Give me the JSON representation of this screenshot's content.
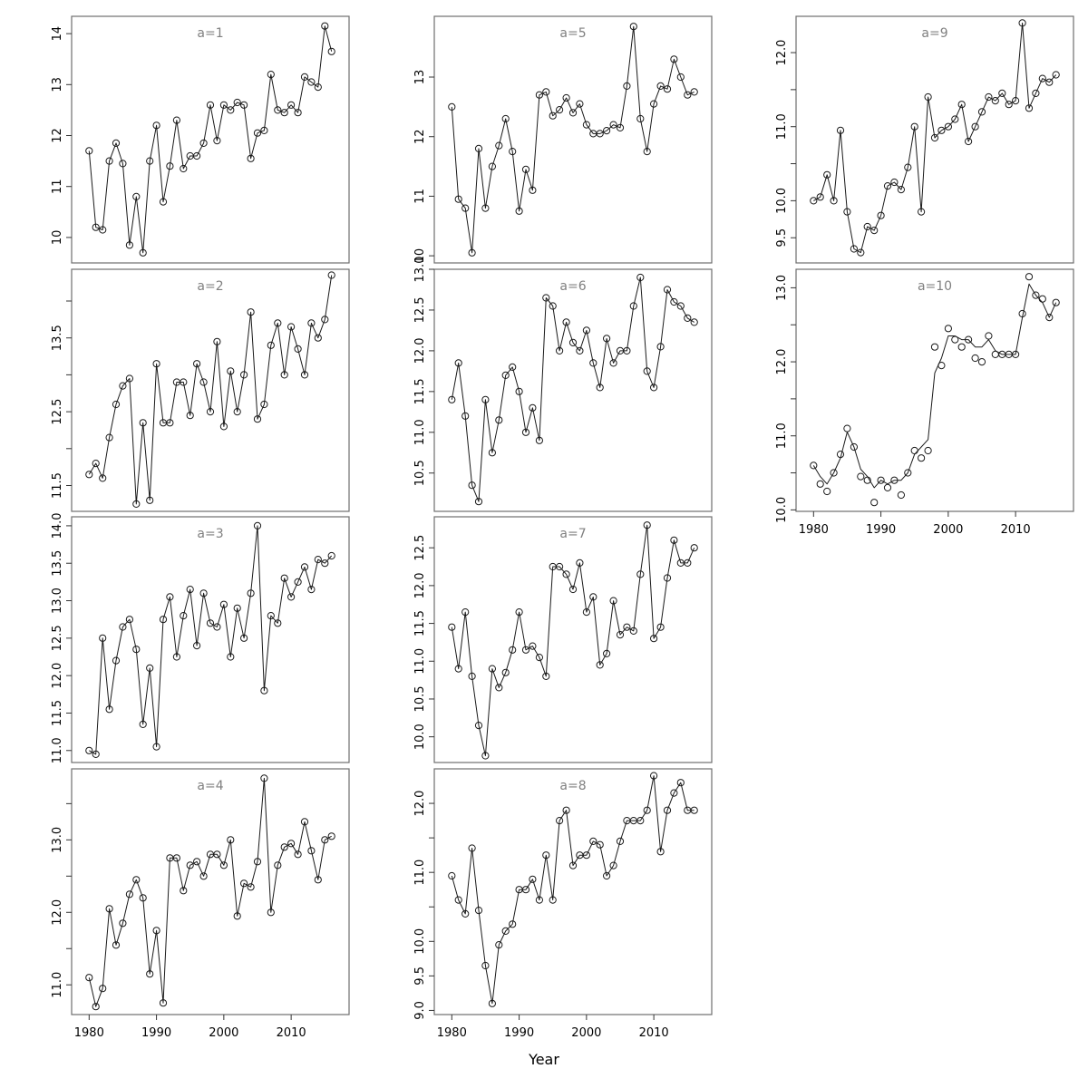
{
  "figure": {
    "xlabel": "Year",
    "x_ticks": [
      1980,
      1990,
      2000,
      2010
    ],
    "x_range": [
      1977.4,
      2018.6
    ],
    "years": [
      1980,
      1981,
      1982,
      1983,
      1984,
      1985,
      1986,
      1987,
      1988,
      1989,
      1990,
      1991,
      1992,
      1993,
      1994,
      1995,
      1996,
      1997,
      1998,
      1999,
      2000,
      2001,
      2002,
      2003,
      2004,
      2005,
      2006,
      2007,
      2008,
      2009,
      2010,
      2011,
      2012,
      2013,
      2014,
      2015,
      2016
    ],
    "line_color": "#1a1a1a",
    "marker_color": "#1a1a1a",
    "border_color": "#6e6e6e",
    "title_color": "#808080",
    "tick_label_color": "#000000"
  },
  "chart_data": [
    {
      "type": "line",
      "title": "a=1",
      "col": 0,
      "row": 0,
      "show_x_labels": false,
      "ylim": [
        9.5,
        14.34
      ],
      "yticks": [
        [
          10,
          "10"
        ],
        [
          11,
          "11"
        ],
        [
          12,
          "12"
        ],
        [
          13,
          "13"
        ],
        [
          14,
          "14"
        ]
      ],
      "values": [
        11.7,
        10.2,
        10.15,
        11.5,
        11.85,
        11.45,
        9.85,
        10.8,
        9.7,
        11.5,
        12.2,
        10.7,
        11.4,
        12.3,
        11.35,
        11.6,
        11.6,
        11.85,
        12.6,
        11.9,
        12.6,
        12.5,
        12.65,
        12.6,
        11.55,
        12.05,
        12.1,
        13.2,
        12.5,
        12.45,
        12.6,
        12.45,
        13.15,
        13.05,
        12.95,
        14.15,
        13.65
      ]
    },
    {
      "type": "line",
      "title": "a=2",
      "col": 0,
      "row": 1,
      "show_x_labels": false,
      "ylim": [
        11.15,
        14.43
      ],
      "yticks": [
        [
          11.5,
          "11.5"
        ],
        [
          12,
          ""
        ],
        [
          12.5,
          "12.5"
        ],
        [
          13,
          ""
        ],
        [
          13.5,
          "13.5"
        ],
        [
          14,
          ""
        ]
      ],
      "values": [
        11.65,
        11.8,
        11.6,
        12.15,
        12.6,
        12.85,
        12.95,
        11.25,
        12.35,
        11.3,
        13.15,
        12.35,
        12.35,
        12.9,
        12.9,
        12.45,
        13.15,
        12.9,
        12.5,
        13.45,
        12.3,
        13.05,
        12.5,
        13.0,
        13.85,
        12.4,
        12.6,
        13.4,
        13.7,
        13.0,
        13.65,
        13.35,
        13.0,
        13.7,
        13.5,
        13.75,
        14.35
      ]
    },
    {
      "type": "line",
      "title": "a=3",
      "col": 0,
      "row": 2,
      "show_x_labels": false,
      "ylim": [
        10.84,
        14.12
      ],
      "yticks": [
        [
          11,
          "11.0"
        ],
        [
          11.5,
          "11.5"
        ],
        [
          12,
          "12.0"
        ],
        [
          12.5,
          "12.5"
        ],
        [
          13,
          "13.0"
        ],
        [
          13.5,
          "13.5"
        ],
        [
          14,
          "14.0"
        ]
      ],
      "values": [
        11.0,
        10.95,
        12.5,
        11.55,
        12.2,
        12.65,
        12.75,
        12.35,
        11.35,
        12.1,
        11.05,
        12.75,
        13.05,
        12.25,
        12.8,
        13.15,
        12.4,
        13.1,
        12.7,
        12.65,
        12.95,
        12.25,
        12.9,
        12.5,
        13.1,
        14.0,
        11.8,
        12.8,
        12.7,
        13.3,
        13.05,
        13.25,
        13.45,
        13.15,
        13.55,
        13.5,
        13.6
      ]
    },
    {
      "type": "line",
      "title": "a=4",
      "col": 0,
      "row": 3,
      "show_x_labels": true,
      "ylim": [
        10.59,
        13.98
      ],
      "yticks": [
        [
          11,
          "11.0"
        ],
        [
          11.5,
          ""
        ],
        [
          12,
          "12.0"
        ],
        [
          12.5,
          ""
        ],
        [
          13,
          "13.0"
        ],
        [
          13.5,
          ""
        ]
      ],
      "values": [
        11.1,
        10.7,
        10.95,
        12.05,
        11.55,
        11.85,
        12.25,
        12.45,
        12.2,
        11.15,
        11.75,
        10.75,
        12.75,
        12.75,
        12.3,
        12.65,
        12.7,
        12.5,
        12.8,
        12.8,
        12.65,
        13.0,
        11.95,
        12.4,
        12.35,
        12.7,
        13.85,
        12.0,
        12.65,
        12.9,
        12.95,
        12.8,
        13.25,
        12.85,
        12.45,
        13.0,
        13.05
      ]
    },
    {
      "type": "line",
      "title": "a=5",
      "col": 1,
      "row": 0,
      "show_x_labels": false,
      "ylim": [
        9.88,
        14.02
      ],
      "yticks": [
        [
          10,
          "10"
        ],
        [
          11,
          "11"
        ],
        [
          12,
          "12"
        ],
        [
          13,
          "13"
        ]
      ],
      "values": [
        12.5,
        10.95,
        10.8,
        10.05,
        11.8,
        10.8,
        11.5,
        11.85,
        12.3,
        11.75,
        10.75,
        11.45,
        11.1,
        12.7,
        12.75,
        12.35,
        12.45,
        12.65,
        12.4,
        12.55,
        12.2,
        12.05,
        12.05,
        12.1,
        12.2,
        12.15,
        12.85,
        13.85,
        12.3,
        11.75,
        12.55,
        12.85,
        12.8,
        13.3,
        13.0,
        12.7,
        12.75
      ]
    },
    {
      "type": "line",
      "title": "a=6",
      "col": 1,
      "row": 1,
      "show_x_labels": false,
      "ylim": [
        10.03,
        13.0
      ],
      "yticks": [
        [
          10.5,
          "10.5"
        ],
        [
          11,
          "11.0"
        ],
        [
          11.5,
          "11.5"
        ],
        [
          12,
          "12.0"
        ],
        [
          12.5,
          "12.5"
        ],
        [
          13,
          "13.0"
        ]
      ],
      "values": [
        11.4,
        11.85,
        11.2,
        10.35,
        10.15,
        11.4,
        10.75,
        11.15,
        11.7,
        11.8,
        11.5,
        11.0,
        11.3,
        10.9,
        12.65,
        12.55,
        12.0,
        12.35,
        12.1,
        12.0,
        12.25,
        11.85,
        11.55,
        12.15,
        11.85,
        12.0,
        12.0,
        12.55,
        12.9,
        11.75,
        11.55,
        12.05,
        12.75,
        12.6,
        12.55,
        12.4,
        12.35
      ]
    },
    {
      "type": "line",
      "title": "a=7",
      "col": 1,
      "row": 2,
      "show_x_labels": false,
      "ylim": [
        9.66,
        12.91
      ],
      "yticks": [
        [
          10,
          "10.0"
        ],
        [
          10.5,
          "10.5"
        ],
        [
          11,
          "11.0"
        ],
        [
          11.5,
          "11.5"
        ],
        [
          12,
          "12.0"
        ],
        [
          12.5,
          "12.5"
        ]
      ],
      "values": [
        11.45,
        10.9,
        11.65,
        10.8,
        10.15,
        9.75,
        10.9,
        10.65,
        10.85,
        11.15,
        11.65,
        11.15,
        11.2,
        11.05,
        10.8,
        12.25,
        12.25,
        12.15,
        11.95,
        12.3,
        11.65,
        11.85,
        10.95,
        11.1,
        11.8,
        11.35,
        11.45,
        11.4,
        12.15,
        12.8,
        11.3,
        11.45,
        12.1,
        12.6,
        12.3,
        12.3,
        12.5
      ]
    },
    {
      "type": "line",
      "title": "a=8",
      "col": 1,
      "row": 3,
      "show_x_labels": true,
      "ylim": [
        8.94,
        12.5
      ],
      "yticks": [
        [
          9,
          "9.0"
        ],
        [
          9.5,
          "9.5"
        ],
        [
          10,
          "10.0"
        ],
        [
          10.5,
          ""
        ],
        [
          11,
          "11.0"
        ],
        [
          11.5,
          ""
        ],
        [
          12,
          "12.0"
        ]
      ],
      "values": [
        10.95,
        10.6,
        10.4,
        11.35,
        10.45,
        9.65,
        9.1,
        9.95,
        10.15,
        10.25,
        10.75,
        10.75,
        10.9,
        10.6,
        11.25,
        10.6,
        11.75,
        11.9,
        11.1,
        11.25,
        11.25,
        11.45,
        11.4,
        10.95,
        11.1,
        11.45,
        11.75,
        11.75,
        11.75,
        11.9,
        12.4,
        11.3,
        11.9,
        12.15,
        12.3,
        11.9,
        11.9
      ]
    },
    {
      "type": "line",
      "title": "a=9",
      "col": 2,
      "row": 0,
      "show_x_labels": false,
      "ylim": [
        9.16,
        12.49
      ],
      "yticks": [
        [
          9.5,
          "9.5"
        ],
        [
          10,
          "10.0"
        ],
        [
          10.5,
          ""
        ],
        [
          11,
          "11.0"
        ],
        [
          11.5,
          ""
        ],
        [
          12,
          "12.0"
        ]
      ],
      "values": [
        10.0,
        10.05,
        10.35,
        10.0,
        10.95,
        9.85,
        9.35,
        9.3,
        9.65,
        9.6,
        9.8,
        10.2,
        10.25,
        10.15,
        10.45,
        11.0,
        9.85,
        11.4,
        10.85,
        10.95,
        11.0,
        11.1,
        11.3,
        10.8,
        11.0,
        11.2,
        11.4,
        11.35,
        11.45,
        11.3,
        11.35,
        12.4,
        11.25,
        11.45,
        11.65,
        11.6,
        11.7
      ]
    },
    {
      "type": "line",
      "title": "a=10",
      "col": 2,
      "row": 1,
      "show_x_labels": true,
      "ylim": [
        9.98,
        13.25
      ],
      "yticks": [
        [
          10,
          "10.0"
        ],
        [
          10.5,
          ""
        ],
        [
          11,
          "11.0"
        ],
        [
          11.5,
          ""
        ],
        [
          12,
          "12.0"
        ],
        [
          12.5,
          ""
        ],
        [
          13,
          "13.0"
        ]
      ],
      "values": [
        10.6,
        10.35,
        10.25,
        10.5,
        10.75,
        11.1,
        10.85,
        10.45,
        10.4,
        10.1,
        10.4,
        10.3,
        10.4,
        10.2,
        10.5,
        10.8,
        10.7,
        10.8,
        12.2,
        11.95,
        12.45,
        12.3,
        12.2,
        12.3,
        12.05,
        12.0,
        12.35,
        12.1,
        12.1,
        12.1,
        12.1,
        12.65,
        13.15,
        12.9,
        12.85,
        12.6,
        12.8
      ],
      "line_values": [
        10.6,
        10.45,
        10.35,
        10.5,
        10.7,
        11.05,
        10.85,
        10.55,
        10.45,
        10.3,
        10.4,
        10.35,
        10.4,
        10.4,
        10.5,
        10.75,
        10.85,
        10.95,
        11.85,
        12.05,
        12.35,
        12.35,
        12.3,
        12.3,
        12.2,
        12.2,
        12.3,
        12.15,
        12.1,
        12.1,
        12.1,
        12.6,
        13.05,
        12.9,
        12.8,
        12.6,
        12.8
      ]
    }
  ]
}
